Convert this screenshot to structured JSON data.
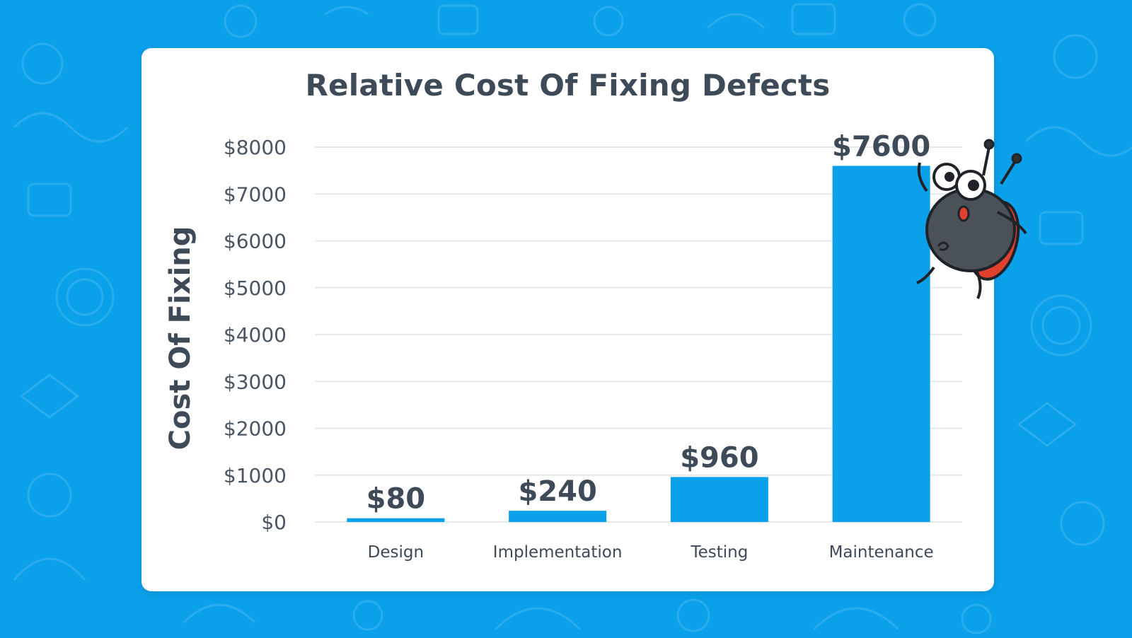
{
  "colors": {
    "background": "#0aa0ea",
    "card": "#ffffff",
    "bar": "#0aa0ea",
    "text": "#3e4a57",
    "grid": "#e6e9ec"
  },
  "chart_data": {
    "type": "bar",
    "title": "Relative Cost Of Fixing Defects",
    "xlabel": "",
    "ylabel": "Cost Of Fixing",
    "categories": [
      "Design",
      "Implementation",
      "Testing",
      "Maintenance"
    ],
    "values": [
      80,
      240,
      960,
      7600
    ],
    "data_labels": [
      "$80",
      "$240",
      "$960",
      "$7600"
    ],
    "ylim": [
      0,
      8000
    ],
    "yticks": [
      0,
      1000,
      2000,
      3000,
      4000,
      5000,
      6000,
      7000,
      8000
    ],
    "ytick_labels": [
      "$0",
      "$1000",
      "$2000",
      "$3000",
      "$4000",
      "$5000",
      "$6000",
      "$7000",
      "$8000"
    ],
    "grid": true,
    "legend": "none"
  },
  "decor": {
    "mascot_icon": "ladybug-mascot-icon",
    "pattern_icon": "doodle-pattern-icon"
  }
}
